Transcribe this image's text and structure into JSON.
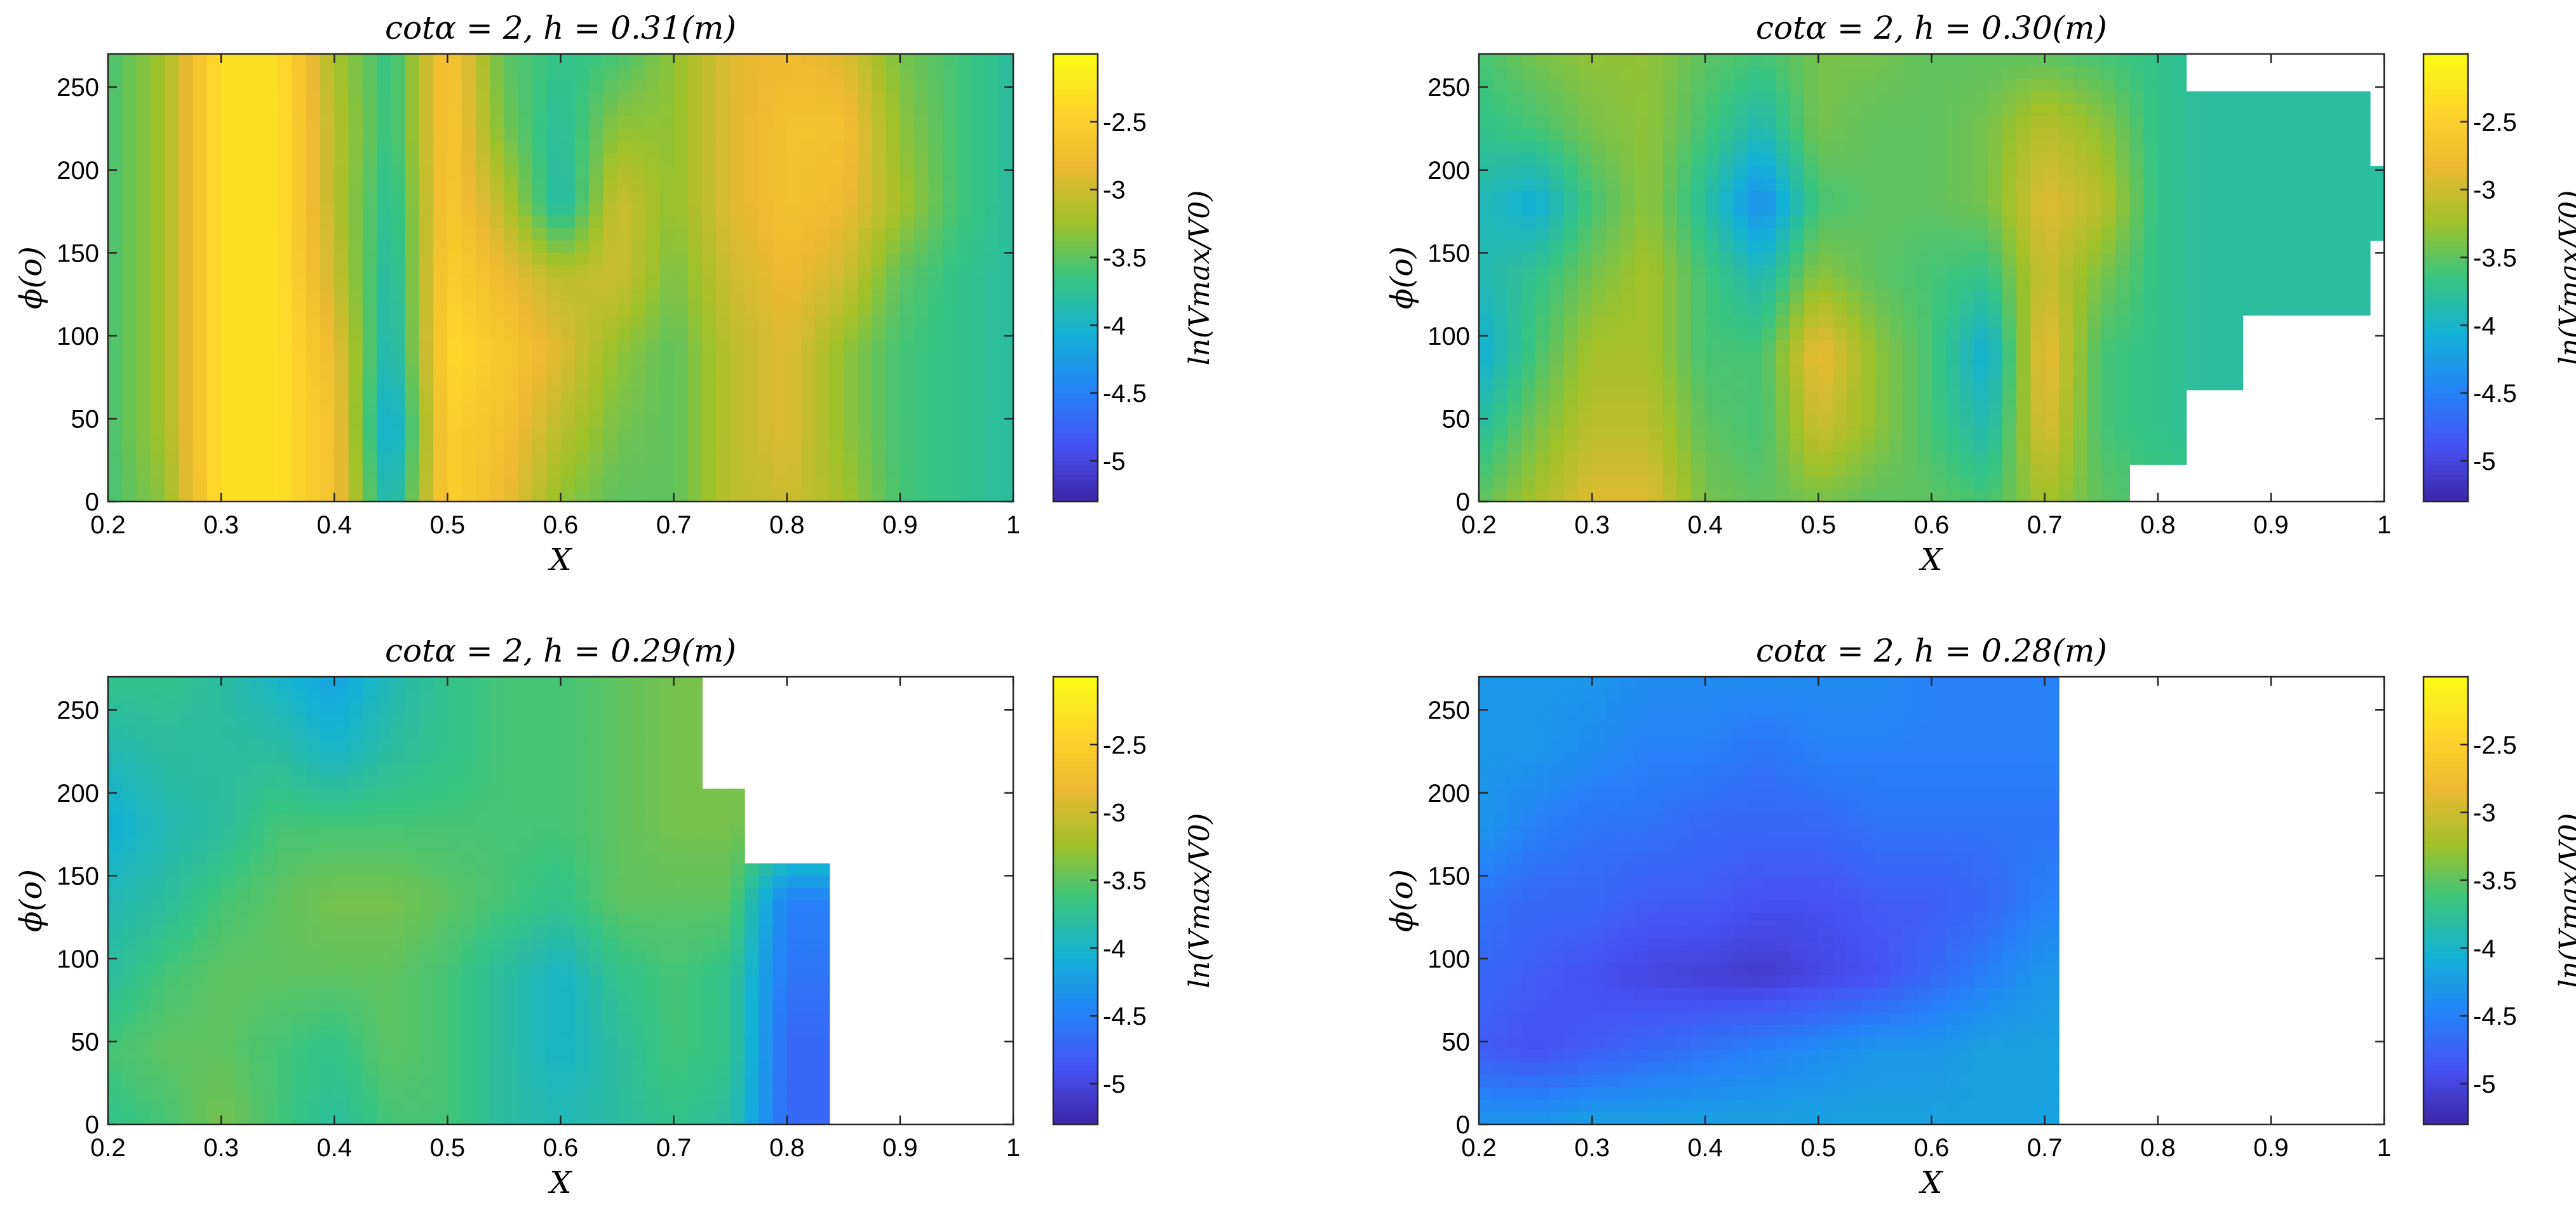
{
  "chart_data": [
    {
      "type": "heatmap",
      "title": "cotα = 2, h = 0.31(m)",
      "xlabel": "X",
      "ylabel": "ϕ(o)",
      "colorbar_label": "ln(Vmax/V0)",
      "xlim": [
        0.2,
        1.0
      ],
      "ylim": [
        0,
        270
      ],
      "x_ticks": [
        "0.2",
        "0.3",
        "0.4",
        "0.5",
        "0.6",
        "0.7",
        "0.8",
        "0.9",
        "1"
      ],
      "y_ticks": [
        "0",
        "50",
        "100",
        "150",
        "200",
        "250"
      ],
      "colorbar_ticks": [
        "-2.5",
        "-3",
        "-3.5",
        "-4",
        "-4.5",
        "-5"
      ],
      "clim": [
        -5.3,
        -2.0
      ],
      "colormap": "parula",
      "x": [
        0.2,
        0.25,
        0.3,
        0.35,
        0.4,
        0.45,
        0.5,
        0.55,
        0.6,
        0.65,
        0.7,
        0.75,
        0.8,
        0.85,
        0.9,
        0.95,
        1.0
      ],
      "y": [
        0,
        45,
        90,
        135,
        180,
        225,
        270
      ],
      "z": [
        [
          -3.6,
          -3.3,
          -2.3,
          -2.3,
          -2.7,
          -4.0,
          -2.5,
          -2.8,
          -3.3,
          -3.5,
          -3.5,
          -3.1,
          -3.0,
          -3.2,
          -3.6,
          -3.7,
          -3.8
        ],
        [
          -3.6,
          -3.2,
          -2.3,
          -2.3,
          -2.7,
          -4.2,
          -2.5,
          -2.7,
          -3.1,
          -3.4,
          -3.5,
          -3.1,
          -2.9,
          -3.3,
          -3.6,
          -3.7,
          -3.8
        ],
        [
          -3.6,
          -3.2,
          -2.3,
          -2.3,
          -2.8,
          -4.0,
          -2.4,
          -2.6,
          -2.9,
          -3.3,
          -3.5,
          -3.1,
          -2.9,
          -3.3,
          -3.6,
          -3.7,
          -3.8
        ],
        [
          -3.6,
          -3.2,
          -2.3,
          -2.3,
          -3.0,
          -3.9,
          -2.5,
          -2.8,
          -3.1,
          -3.0,
          -3.4,
          -3.0,
          -2.8,
          -3.0,
          -3.5,
          -3.7,
          -3.8
        ],
        [
          -3.6,
          -3.2,
          -2.3,
          -2.3,
          -3.1,
          -3.8,
          -2.6,
          -3.1,
          -3.9,
          -3.0,
          -3.3,
          -2.9,
          -2.7,
          -2.8,
          -3.2,
          -3.6,
          -3.8
        ],
        [
          -3.6,
          -3.2,
          -2.3,
          -2.3,
          -3.1,
          -3.7,
          -2.6,
          -3.4,
          -3.8,
          -3.3,
          -3.3,
          -2.9,
          -2.7,
          -2.7,
          -3.3,
          -3.6,
          -3.8
        ],
        [
          -3.6,
          -3.2,
          -2.3,
          -2.3,
          -3.2,
          -3.7,
          -2.6,
          -3.5,
          -3.7,
          -3.6,
          -3.3,
          -2.9,
          -2.8,
          -2.9,
          -3.4,
          -3.6,
          -3.8
        ]
      ],
      "valid_xmax": [
        1.0,
        1.0,
        1.0,
        1.0,
        1.0,
        1.0,
        1.0
      ]
    },
    {
      "type": "heatmap",
      "title": "cotα = 2, h = 0.30(m)",
      "xlabel": "X",
      "ylabel": "ϕ(o)",
      "colorbar_label": "ln(Vmax/V0)",
      "xlim": [
        0.2,
        1.0
      ],
      "ylim": [
        0,
        270
      ],
      "x_ticks": [
        "0.2",
        "0.3",
        "0.4",
        "0.5",
        "0.6",
        "0.7",
        "0.8",
        "0.9",
        "1"
      ],
      "y_ticks": [
        "0",
        "50",
        "100",
        "150",
        "200",
        "250"
      ],
      "colorbar_ticks": [
        "-2.5",
        "-3",
        "-3.5",
        "-4",
        "-4.5",
        "-5"
      ],
      "clim": [
        -5.3,
        -2.0
      ],
      "colormap": "parula",
      "x": [
        0.2,
        0.25,
        0.3,
        0.35,
        0.4,
        0.45,
        0.5,
        0.55,
        0.6,
        0.65,
        0.7,
        0.75,
        0.8,
        0.85,
        0.9,
        0.95,
        1.0
      ],
      "y": [
        0,
        45,
        90,
        135,
        180,
        225,
        270
      ],
      "z": [
        [
          -3.5,
          -3.2,
          -2.9,
          -2.9,
          -3.4,
          -3.5,
          -3.4,
          -3.5,
          -3.5,
          -3.6,
          -3.2,
          -3.5,
          -3.6,
          -3.7,
          -3.8,
          -3.8,
          -3.8
        ],
        [
          -3.8,
          -3.4,
          -3.1,
          -3.1,
          -3.5,
          -3.6,
          -3.0,
          -3.3,
          -3.6,
          -3.9,
          -2.9,
          -3.6,
          -3.7,
          -3.8,
          -3.8,
          -3.8,
          -3.8
        ],
        [
          -4.1,
          -3.6,
          -3.2,
          -3.2,
          -3.6,
          -3.6,
          -2.8,
          -3.3,
          -3.6,
          -4.1,
          -2.8,
          -3.6,
          -3.7,
          -3.8,
          -3.8,
          -3.8,
          -3.8
        ],
        [
          -3.9,
          -3.7,
          -3.4,
          -3.2,
          -3.6,
          -3.9,
          -3.3,
          -3.5,
          -3.6,
          -3.7,
          -3.0,
          -3.4,
          -3.7,
          -3.8,
          -3.8,
          -3.8,
          -3.8
        ],
        [
          -3.9,
          -4.1,
          -3.6,
          -3.3,
          -3.8,
          -4.4,
          -3.6,
          -3.5,
          -3.5,
          -3.4,
          -2.9,
          -3.1,
          -3.7,
          -3.8,
          -3.8,
          -3.8,
          -3.8
        ],
        [
          -3.7,
          -3.6,
          -3.4,
          -3.3,
          -3.6,
          -3.9,
          -3.4,
          -3.5,
          -3.5,
          -3.4,
          -3.1,
          -3.3,
          -3.7,
          -3.8,
          -3.8,
          -3.8,
          -3.8
        ],
        [
          -3.6,
          -3.4,
          -3.3,
          -3.3,
          -3.5,
          -3.6,
          -3.4,
          -3.4,
          -3.5,
          -3.5,
          -3.5,
          -3.6,
          -3.7,
          -3.8,
          -3.8,
          -3.8,
          -3.8
        ]
      ],
      "valid_xmax": [
        0.77,
        0.82,
        0.88,
        0.99,
        1.0,
        0.99,
        0.82
      ]
    },
    {
      "type": "heatmap",
      "title": "cotα = 2, h = 0.29(m)",
      "xlabel": "X",
      "ylabel": "ϕ(o)",
      "colorbar_label": "ln(Vmax/V0)",
      "xlim": [
        0.2,
        1.0
      ],
      "ylim": [
        0,
        270
      ],
      "x_ticks": [
        "0.2",
        "0.3",
        "0.4",
        "0.5",
        "0.6",
        "0.7",
        "0.8",
        "0.9",
        "1"
      ],
      "y_ticks": [
        "0",
        "50",
        "100",
        "150",
        "200",
        "250"
      ],
      "colorbar_ticks": [
        "-2.5",
        "-3",
        "-3.5",
        "-4",
        "-4.5",
        "-5"
      ],
      "clim": [
        -5.3,
        -2.0
      ],
      "colormap": "parula",
      "x": [
        0.2,
        0.25,
        0.3,
        0.35,
        0.4,
        0.45,
        0.5,
        0.55,
        0.6,
        0.65,
        0.7,
        0.75,
        0.8,
        0.85
      ],
      "y": [
        0,
        45,
        90,
        135,
        180,
        225,
        270
      ],
      "z": [
        [
          -3.7,
          -3.6,
          -3.4,
          -3.6,
          -3.8,
          -3.6,
          -3.6,
          -3.8,
          -3.9,
          -3.8,
          -3.7,
          -3.8,
          -4.7,
          -4.7
        ],
        [
          -3.6,
          -3.5,
          -3.5,
          -3.6,
          -3.7,
          -3.5,
          -3.6,
          -3.8,
          -4.0,
          -3.8,
          -3.6,
          -3.7,
          -4.7,
          -4.7
        ],
        [
          -3.8,
          -3.6,
          -3.5,
          -3.5,
          -3.5,
          -3.5,
          -3.6,
          -3.8,
          -4.0,
          -3.7,
          -3.6,
          -3.7,
          -4.6,
          -4.6
        ],
        [
          -3.9,
          -3.8,
          -3.6,
          -3.5,
          -3.4,
          -3.4,
          -3.5,
          -3.6,
          -3.7,
          -3.5,
          -3.5,
          -3.5,
          -4.5,
          -4.5
        ],
        [
          -4.1,
          -3.9,
          -3.8,
          -3.6,
          -3.6,
          -3.6,
          -3.6,
          -3.6,
          -3.6,
          -3.5,
          -3.4,
          -3.4,
          -3.5,
          -3.5
        ],
        [
          -3.9,
          -3.8,
          -3.8,
          -3.8,
          -4.0,
          -3.8,
          -3.7,
          -3.6,
          -3.6,
          -3.5,
          -3.4,
          -3.4,
          -3.4,
          -3.4
        ],
        [
          -3.7,
          -3.7,
          -3.8,
          -4.0,
          -4.2,
          -3.9,
          -3.7,
          -3.6,
          -3.6,
          -3.5,
          -3.4,
          -3.4,
          -3.4,
          -3.4
        ]
      ],
      "valid_xmax": [
        0.835,
        0.835,
        0.835,
        0.835,
        0.76,
        0.72,
        0.72
      ]
    },
    {
      "type": "heatmap",
      "title": "cotα = 2, h = 0.28(m)",
      "xlabel": "X",
      "ylabel": "ϕ(o)",
      "colorbar_label": "ln(Vmax/V0)",
      "xlim": [
        0.2,
        1.0
      ],
      "ylim": [
        0,
        270
      ],
      "x_ticks": [
        "0.2",
        "0.3",
        "0.4",
        "0.5",
        "0.6",
        "0.7",
        "0.8",
        "0.9",
        "1"
      ],
      "y_ticks": [
        "0",
        "50",
        "100",
        "150",
        "200",
        "250"
      ],
      "colorbar_ticks": [
        "-2.5",
        "-3",
        "-3.5",
        "-4",
        "-4.5",
        "-5"
      ],
      "clim": [
        -5.3,
        -2.0
      ],
      "colormap": "parula",
      "x": [
        0.2,
        0.25,
        0.3,
        0.35,
        0.4,
        0.45,
        0.5,
        0.55,
        0.6,
        0.65,
        0.7,
        0.75
      ],
      "y": [
        0,
        45,
        90,
        135,
        180,
        225,
        270
      ],
      "z": [
        [
          -4.3,
          -4.3,
          -4.2,
          -4.2,
          -4.2,
          -4.2,
          -4.2,
          -4.2,
          -4.2,
          -4.2,
          -4.2,
          -4.2
        ],
        [
          -4.8,
          -4.9,
          -4.8,
          -4.7,
          -4.6,
          -4.5,
          -4.4,
          -4.3,
          -4.3,
          -4.2,
          -4.2,
          -4.2
        ],
        [
          -4.7,
          -4.8,
          -4.9,
          -5.0,
          -5.05,
          -5.1,
          -5.0,
          -4.9,
          -4.7,
          -4.5,
          -4.3,
          -4.3
        ],
        [
          -4.6,
          -4.7,
          -4.7,
          -4.8,
          -4.8,
          -4.9,
          -4.9,
          -4.8,
          -4.8,
          -4.7,
          -4.5,
          -4.5
        ],
        [
          -4.3,
          -4.5,
          -4.6,
          -4.6,
          -4.7,
          -4.7,
          -4.7,
          -4.6,
          -4.6,
          -4.6,
          -4.6,
          -4.6
        ],
        [
          -4.3,
          -4.3,
          -4.4,
          -4.5,
          -4.5,
          -4.6,
          -4.5,
          -4.5,
          -4.5,
          -4.5,
          -4.5,
          -4.5
        ],
        [
          -4.3,
          -4.3,
          -4.3,
          -4.4,
          -4.4,
          -4.4,
          -4.4,
          -4.4,
          -4.5,
          -4.5,
          -4.5,
          -4.5
        ]
      ],
      "valid_xmax": [
        0.715,
        0.715,
        0.715,
        0.715,
        0.715,
        0.715,
        0.715
      ]
    }
  ]
}
